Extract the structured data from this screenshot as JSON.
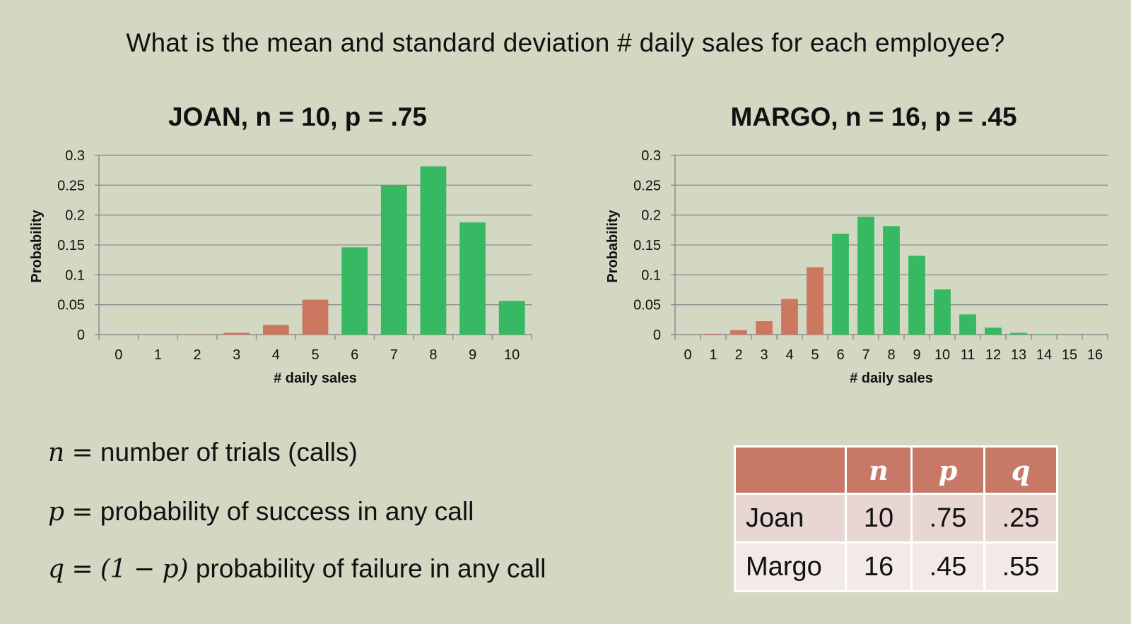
{
  "headline": "What is the mean and standard deviation # daily sales  for each employee?",
  "colors": {
    "background": "#d3d8c2",
    "failure_bar": "#cc7860",
    "success_bar": "#37b862",
    "table_header": "#c87866"
  },
  "chart_data": [
    {
      "type": "bar",
      "title": "JOAN, n = 10, p = .75",
      "xlabel": "# daily sales",
      "ylabel": "Probability",
      "ylim": [
        0,
        0.3
      ],
      "yticks": [
        "0",
        "0.05",
        "0.1",
        "0.15",
        "0.2",
        "0.25",
        "0.3"
      ],
      "grid": true,
      "categories": [
        "0",
        "1",
        "2",
        "3",
        "4",
        "5",
        "6",
        "7",
        "8",
        "9",
        "10"
      ],
      "values": [
        0.0,
        0.0,
        0.0004,
        0.0031,
        0.0162,
        0.0584,
        0.146,
        0.2503,
        0.2816,
        0.1877,
        0.0563
      ],
      "bar_status": [
        "failure",
        "failure",
        "failure",
        "failure",
        "failure",
        "failure",
        "success",
        "success",
        "success",
        "success",
        "success"
      ]
    },
    {
      "type": "bar",
      "title": "MARGO, n = 16, p = .45",
      "xlabel": "# daily sales",
      "ylabel": "Probability",
      "ylim": [
        0,
        0.3
      ],
      "yticks": [
        "0",
        "0.05",
        "0.1",
        "0.15",
        "0.2",
        "0.25",
        "0.3"
      ],
      "grid": true,
      "categories": [
        "0",
        "1",
        "2",
        "3",
        "4",
        "5",
        "6",
        "7",
        "8",
        "9",
        "10",
        "11",
        "12",
        "13",
        "14",
        "15",
        "16"
      ],
      "values": [
        0.0001,
        0.0013,
        0.0075,
        0.0224,
        0.0596,
        0.1128,
        0.1689,
        0.1974,
        0.1815,
        0.1318,
        0.0756,
        0.0338,
        0.0116,
        0.0029,
        0.0005,
        0.0001,
        0.0
      ],
      "bar_status": [
        "failure",
        "failure",
        "failure",
        "failure",
        "failure",
        "failure",
        "success",
        "success",
        "success",
        "success",
        "success",
        "success",
        "success",
        "success",
        "success",
        "success",
        "success"
      ]
    }
  ],
  "definitions": {
    "n": {
      "symbol": "n",
      "eq": "=",
      "text": "number of trials (calls)"
    },
    "p": {
      "symbol": "p",
      "eq": "=",
      "text": "probability of success in any call"
    },
    "q": {
      "symbol": "q",
      "eq": "=",
      "open": "(",
      "one": "1",
      "minus": "−",
      "p": "p",
      "close": ")",
      "text": "probability of failure in any call"
    }
  },
  "table": {
    "headers": [
      "",
      "n",
      "p",
      "q"
    ],
    "rows": [
      [
        "Joan",
        "10",
        ".75",
        ".25"
      ],
      [
        "Margo",
        "16",
        ".45",
        ".55"
      ]
    ]
  }
}
